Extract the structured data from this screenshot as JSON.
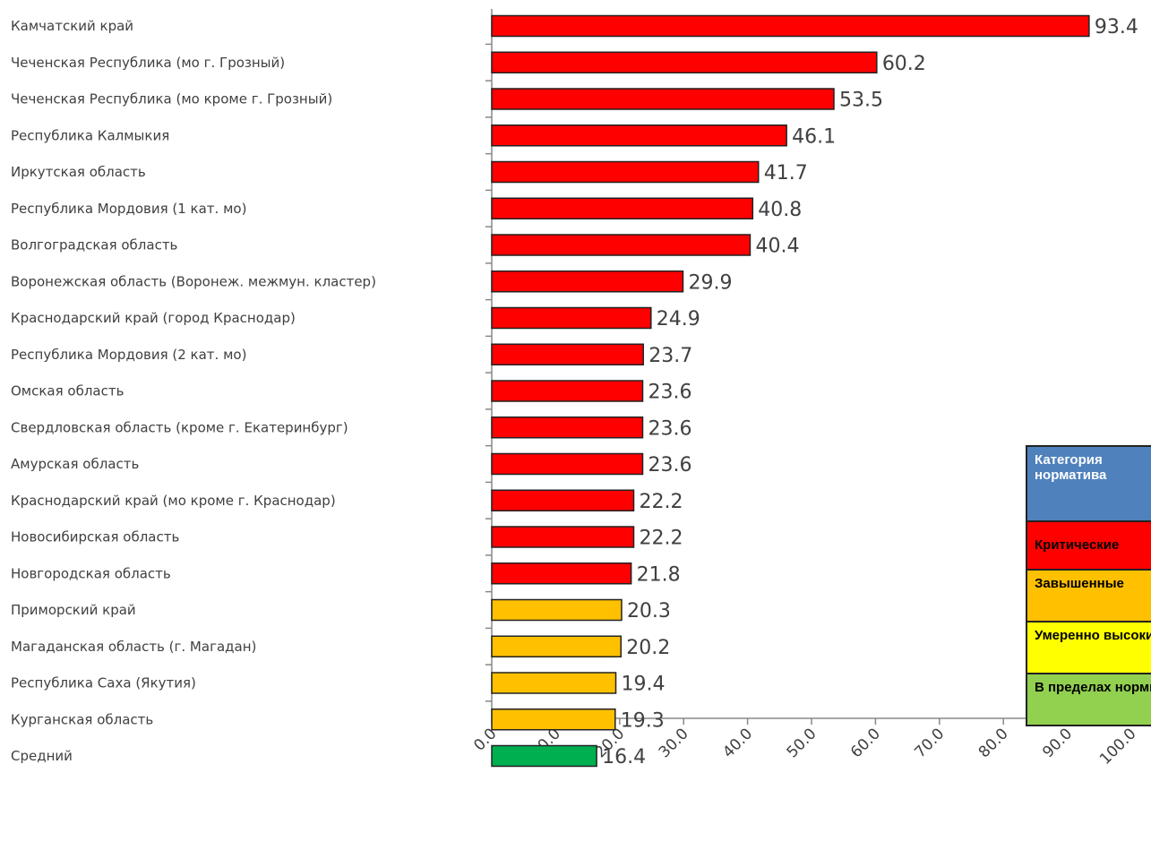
{
  "chart_data": {
    "type": "bar",
    "orientation": "horizontal",
    "categories": [
      "Камчатский край",
      "Чеченская Республика (мо г. Грозный)",
      "Чеченская Республика (мо кроме г. Грозный)",
      "Республика Калмыкия",
      "Иркутская область",
      "Республика Мордовия (1 кат. мо)",
      "Волгоградская область",
      "Воронежская область (Воронеж. межмун. кластер)",
      "Краснодарский край (город Краснодар)",
      "Республика Мордовия (2 кат. мо)",
      "Омская область",
      "Свердловская область (кроме г. Екатеринбург)",
      "Амурская область",
      "Краснодарский край (мо кроме г. Краснодар)",
      "Новосибирская область",
      "Новгородская область",
      "Приморский край",
      "Магаданская область (г. Магадан)",
      "Республика Саха (Якутия)",
      "Курганская область",
      "Средний"
    ],
    "values": [
      93.4,
      60.2,
      53.5,
      46.1,
      41.7,
      40.8,
      40.4,
      29.9,
      24.9,
      23.7,
      23.6,
      23.6,
      23.6,
      22.2,
      22.2,
      21.8,
      20.3,
      20.2,
      19.4,
      19.3,
      16.4
    ],
    "value_labels": [
      "93.4",
      "60.2",
      "53.5",
      "46.1",
      "41.7",
      "40.8",
      "40.4",
      "29.9",
      "24.9",
      "23.7",
      "23.6",
      "23.6",
      "23.6",
      "22.2",
      "22.2",
      "21.8",
      "20.3",
      "20.2",
      "19.4",
      "19.3",
      "16.4"
    ],
    "bar_categories": [
      "critical",
      "critical",
      "critical",
      "critical",
      "critical",
      "critical",
      "critical",
      "critical",
      "critical",
      "critical",
      "critical",
      "critical",
      "critical",
      "critical",
      "critical",
      "critical",
      "elevated",
      "elevated",
      "elevated",
      "elevated",
      "normal"
    ],
    "xlim": [
      0,
      100
    ],
    "x_ticks": [
      "0.0",
      "10.0",
      "20.0",
      "30.0",
      "40.0",
      "50.0",
      "60.0",
      "70.0",
      "80.0",
      "90.0",
      "100.0"
    ],
    "title": "",
    "xlabel": "",
    "ylabel": "",
    "grid": false,
    "legend_position": "right"
  },
  "colors": {
    "critical": "#ff0000",
    "elevated": "#ffc000",
    "moderate": "#ffff00",
    "normal": "#00b050",
    "legend_normal": "#92d050",
    "header": "#4f81bd"
  },
  "legend": {
    "header": "Категория норматива",
    "items": [
      {
        "key": "critical",
        "label": "Критические"
      },
      {
        "key": "elevated",
        "label": "Завышенные"
      },
      {
        "key": "moderate",
        "label": "Умеренно высокие"
      },
      {
        "key": "normal",
        "label": "В пределах нормы"
      }
    ]
  }
}
